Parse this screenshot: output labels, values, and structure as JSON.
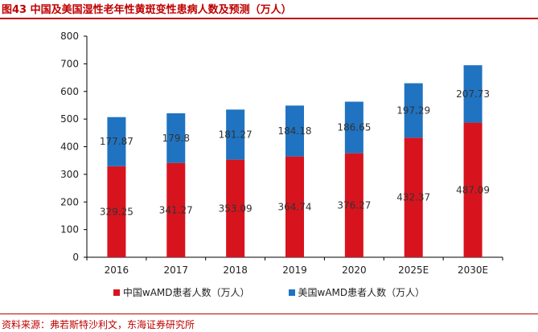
{
  "title": "图43  中国及美国湿性老年性黄斑变性患病人数及预测（万人）",
  "source": "资料来源：弗若斯特沙利文，东海证券研究所",
  "colors": {
    "china": "#d7141e",
    "usa": "#1f73c1",
    "accent": "#c00000"
  },
  "chart_data": {
    "type": "bar",
    "stacked": true,
    "categories": [
      "2016",
      "2017",
      "2018",
      "2019",
      "2020",
      "2025E",
      "2030E"
    ],
    "series": [
      {
        "name": "中国wAMD患者人数（万人）",
        "values": [
          329.25,
          341.27,
          353.09,
          364.74,
          376.27,
          432.37,
          487.09
        ],
        "labels": [
          "329.25",
          "341.27",
          "353.09",
          "364.74",
          "376.27",
          "432.37",
          "487.09"
        ]
      },
      {
        "name": "美国wAMD患者人数（万人）",
        "values": [
          177.87,
          179.8,
          181.27,
          184.18,
          186.65,
          197.29,
          207.73
        ],
        "labels": [
          "177.87",
          "179.8",
          "181.27",
          "184.18",
          "186.65",
          "197.29",
          "207.73"
        ]
      }
    ],
    "ylim": [
      0,
      800
    ],
    "yticks": [
      0,
      100,
      200,
      300,
      400,
      500,
      600,
      700,
      800
    ],
    "grid": false,
    "legend_position": "bottom"
  }
}
